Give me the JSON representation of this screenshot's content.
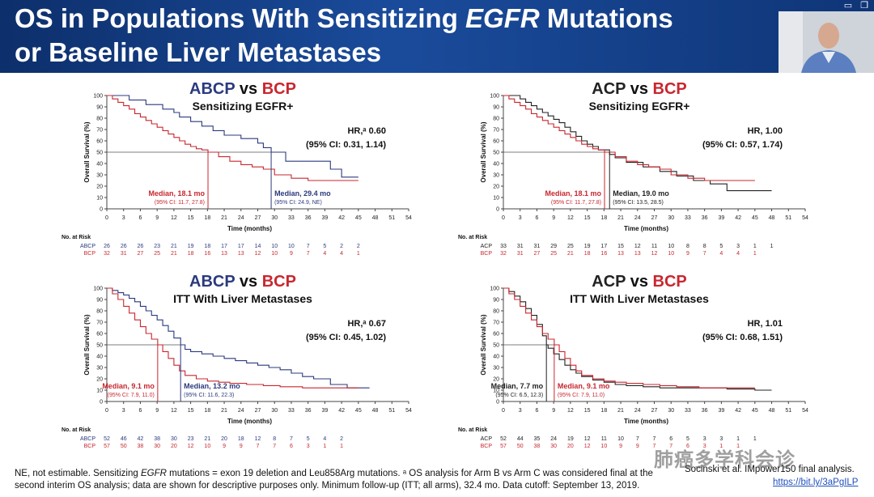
{
  "header": {
    "title_part1": "OS in Populations With Sensitizing ",
    "title_italic": "EGFR",
    "title_part2": " Mutations",
    "title_line2": "or Baseline Liver Metastases"
  },
  "window_icons": [
    "minimize-icon",
    "restore-icon"
  ],
  "colors": {
    "arm_abcp": "#2b3a7e",
    "arm_acp": "#222222",
    "arm_bcp": "#c8272f",
    "banner": "#1a4b9b"
  },
  "chart_data": [
    {
      "type": "line",
      "title_arm1": "ABCP",
      "title_vs": "vs",
      "title_arm2": "BCP",
      "subtitle": "Sensitizing EGFR+",
      "hr": "HR,ᵃ 0.60",
      "ci": "(95% CI: 0.31, 1.14)",
      "xlabel": "Time (months)",
      "ylabel": "Overall Survival (%)",
      "xlim": [
        0,
        54
      ],
      "ylim": [
        0,
        100
      ],
      "xticks": [
        0,
        3,
        6,
        9,
        12,
        15,
        18,
        21,
        24,
        27,
        30,
        33,
        36,
        39,
        42,
        45,
        48,
        51,
        54
      ],
      "yticks": [
        0,
        10,
        20,
        30,
        40,
        50,
        60,
        70,
        80,
        90,
        100
      ],
      "series": [
        {
          "name": "ABCP",
          "color_key": "arm1",
          "x": [
            0,
            3,
            4,
            6,
            7,
            9,
            10,
            12,
            13,
            15,
            17,
            19,
            21,
            24,
            27,
            28,
            29.4,
            32,
            37,
            40,
            42,
            45
          ],
          "y": [
            100,
            100,
            96,
            96,
            92,
            92,
            88,
            85,
            81,
            77,
            73,
            69,
            65,
            62,
            58,
            54,
            50,
            42,
            42,
            35,
            28,
            28
          ]
        },
        {
          "name": "BCP",
          "color_key": "arm2",
          "x": [
            0,
            1,
            2,
            3,
            4,
            5,
            6,
            7,
            8,
            9,
            10,
            11,
            12,
            13,
            14,
            15,
            16,
            17,
            18.1,
            20,
            22,
            24,
            26,
            28,
            30,
            33,
            36,
            40,
            45
          ],
          "y": [
            100,
            97,
            94,
            91,
            88,
            84,
            81,
            78,
            75,
            72,
            69,
            66,
            63,
            60,
            57,
            55,
            53,
            52,
            50,
            46,
            42,
            39,
            37,
            35,
            30,
            27,
            25,
            25,
            25
          ]
        }
      ],
      "medians": [
        {
          "label": "Median, 18.1 mo",
          "ci": "(95% CI: 11.7, 27.8)",
          "x": 18.1,
          "color_key": "arm2"
        },
        {
          "label": "Median, 29.4 mo",
          "ci": "(95% CI: 24.9, NE)",
          "x": 29.4,
          "color_key": "arm1"
        }
      ],
      "at_risk": {
        "title": "No. at Risk",
        "rows": [
          {
            "label": "ABCP",
            "color_key": "arm1",
            "values": [
              "26",
              "26",
              "26",
              "23",
              "21",
              "19",
              "18",
              "17",
              "17",
              "14",
              "10",
              "10",
              "7",
              "5",
              "2",
              "2"
            ]
          },
          {
            "label": "BCP",
            "color_key": "arm2",
            "values": [
              "32",
              "31",
              "27",
              "25",
              "21",
              "18",
              "16",
              "13",
              "13",
              "12",
              "10",
              "9",
              "7",
              "4",
              "4",
              "1"
            ]
          }
        ]
      }
    },
    {
      "type": "line",
      "title_arm1": "ACP",
      "title_vs": "vs",
      "title_arm2": "BCP",
      "subtitle": "Sensitizing EGFR+",
      "hr": "HR, 1.00",
      "ci": "(95% CI: 0.57, 1.74)",
      "xlabel": "Time (months)",
      "ylabel": "Overall Survival (%)",
      "xlim": [
        0,
        54
      ],
      "ylim": [
        0,
        100
      ],
      "xticks": [
        0,
        3,
        6,
        9,
        12,
        15,
        18,
        21,
        24,
        27,
        30,
        33,
        36,
        39,
        42,
        45,
        48,
        51,
        54
      ],
      "yticks": [
        0,
        10,
        20,
        30,
        40,
        50,
        60,
        70,
        80,
        90,
        100
      ],
      "series": [
        {
          "name": "ACP",
          "color_key": "arm1",
          "x": [
            0,
            2,
            3,
            4,
            5,
            6,
            7,
            8,
            9,
            10,
            11,
            12,
            13,
            14,
            15,
            16,
            17,
            19,
            20,
            22,
            25,
            28,
            31,
            34,
            37,
            39,
            40,
            45,
            48
          ],
          "y": [
            100,
            100,
            97,
            94,
            91,
            88,
            85,
            82,
            79,
            76,
            72,
            68,
            64,
            60,
            57,
            55,
            52,
            48,
            45,
            41,
            37,
            33,
            29,
            25,
            22,
            22,
            16,
            16,
            16
          ]
        },
        {
          "name": "BCP",
          "color_key": "arm2",
          "x": [
            0,
            1,
            2,
            3,
            4,
            5,
            6,
            7,
            8,
            9,
            10,
            11,
            12,
            13,
            14,
            15,
            16,
            17,
            18.1,
            20,
            22,
            24,
            26,
            28,
            30,
            33,
            36,
            40,
            45
          ],
          "y": [
            100,
            97,
            94,
            91,
            88,
            84,
            81,
            78,
            75,
            72,
            69,
            66,
            63,
            60,
            57,
            55,
            53,
            52,
            50,
            46,
            42,
            39,
            37,
            35,
            30,
            27,
            25,
            25,
            25
          ]
        }
      ],
      "medians": [
        {
          "label": "Median, 18.1 mo",
          "ci": "(95% CI: 11.7, 27.8)",
          "x": 18.1,
          "color_key": "arm2"
        },
        {
          "label": "Median, 19.0 mo",
          "ci": "(95% CI: 13.5, 28.5)",
          "x": 19.0,
          "color_key": "arm1"
        }
      ],
      "at_risk": {
        "title": "No. at Risk",
        "rows": [
          {
            "label": "ACP",
            "color_key": "arm1",
            "values": [
              "33",
              "31",
              "31",
              "29",
              "25",
              "19",
              "17",
              "15",
              "12",
              "11",
              "10",
              "8",
              "8",
              "5",
              "3",
              "1",
              "1"
            ]
          },
          {
            "label": "BCP",
            "color_key": "arm2",
            "values": [
              "32",
              "31",
              "27",
              "25",
              "21",
              "18",
              "16",
              "13",
              "13",
              "12",
              "10",
              "9",
              "7",
              "4",
              "4",
              "1"
            ]
          }
        ]
      }
    },
    {
      "type": "line",
      "title_arm1": "ABCP",
      "title_vs": "vs",
      "title_arm2": "BCP",
      "subtitle": "ITT With Liver Metastases",
      "hr": "HR,ᵃ 0.67",
      "ci": "(95% CI: 0.45, 1.02)",
      "xlabel": "Time (months)",
      "ylabel": "Overall Survival (%)",
      "xlim": [
        0,
        54
      ],
      "ylim": [
        0,
        100
      ],
      "xticks": [
        0,
        3,
        6,
        9,
        12,
        15,
        18,
        21,
        24,
        27,
        30,
        33,
        36,
        39,
        42,
        45,
        48,
        51,
        54
      ],
      "yticks": [
        0,
        10,
        20,
        30,
        40,
        50,
        60,
        70,
        80,
        90,
        100
      ],
      "series": [
        {
          "name": "ABCP",
          "color_key": "arm1",
          "x": [
            0,
            1,
            2,
            3,
            4,
            5,
            6,
            7,
            8,
            9,
            10,
            11,
            12,
            13.2,
            14,
            15,
            17,
            19,
            21,
            23,
            25,
            27,
            29,
            31,
            33,
            35,
            37,
            40,
            43,
            47
          ],
          "y": [
            100,
            98,
            96,
            94,
            91,
            88,
            84,
            80,
            76,
            72,
            67,
            62,
            56,
            50,
            46,
            44,
            42,
            40,
            38,
            36,
            34,
            32,
            30,
            28,
            25,
            22,
            20,
            15,
            12,
            12
          ]
        },
        {
          "name": "BCP",
          "color_key": "arm2",
          "x": [
            0,
            1,
            2,
            3,
            4,
            5,
            6,
            7,
            8,
            9.1,
            10,
            11,
            12,
            13,
            14,
            16,
            18,
            20,
            22,
            25,
            28,
            31,
            35,
            40,
            45
          ],
          "y": [
            100,
            95,
            90,
            84,
            78,
            72,
            66,
            60,
            55,
            50,
            44,
            38,
            32,
            27,
            23,
            20,
            18,
            17,
            16,
            15,
            14,
            13,
            12,
            12,
            12
          ]
        }
      ],
      "medians": [
        {
          "label": "Median, 9.1 mo",
          "ci": "(95% CI: 7.9, 11.0)",
          "x": 9.1,
          "color_key": "arm2"
        },
        {
          "label": "Median, 13.2 mo",
          "ci": "(95% CI: 11.6, 22.3)",
          "x": 13.2,
          "color_key": "arm1"
        }
      ],
      "at_risk": {
        "title": "No. at Risk",
        "rows": [
          {
            "label": "ABCP",
            "color_key": "arm1",
            "values": [
              "52",
              "46",
              "42",
              "38",
              "30",
              "23",
              "21",
              "20",
              "18",
              "12",
              "8",
              "7",
              "5",
              "4",
              "2"
            ]
          },
          {
            "label": "BCP",
            "color_key": "arm2",
            "values": [
              "57",
              "50",
              "38",
              "30",
              "20",
              "12",
              "10",
              "9",
              "9",
              "7",
              "7",
              "6",
              "3",
              "1",
              "1"
            ]
          }
        ]
      }
    },
    {
      "type": "line",
      "title_arm1": "ACP",
      "title_vs": "vs",
      "title_arm2": "BCP",
      "subtitle": "ITT With Liver Metastases",
      "hr": "HR, 1.01",
      "ci": "(95% CI: 0.68, 1.51)",
      "xlabel": "Time (months)",
      "ylabel": "Overall Survival (%)",
      "xlim": [
        0,
        54
      ],
      "ylim": [
        0,
        100
      ],
      "xticks": [
        0,
        3,
        6,
        9,
        12,
        15,
        18,
        21,
        24,
        27,
        30,
        33,
        36,
        39,
        42,
        45,
        48,
        51,
        54
      ],
      "yticks": [
        0,
        10,
        20,
        30,
        40,
        50,
        60,
        70,
        80,
        90,
        100
      ],
      "series": [
        {
          "name": "ACP",
          "color_key": "arm1",
          "x": [
            0,
            1,
            2,
            3,
            4,
            5,
            6,
            7,
            7.7,
            8,
            9,
            10,
            11,
            12,
            13,
            14,
            16,
            18,
            20,
            22,
            25,
            28,
            31,
            35,
            40,
            45,
            48
          ],
          "y": [
            100,
            97,
            93,
            88,
            82,
            76,
            68,
            58,
            50,
            47,
            42,
            37,
            32,
            28,
            25,
            22,
            19,
            17,
            15,
            14,
            13,
            12,
            12,
            12,
            11,
            10,
            10
          ]
        },
        {
          "name": "BCP",
          "color_key": "arm2",
          "x": [
            0,
            1,
            2,
            3,
            4,
            5,
            6,
            7,
            8,
            9.1,
            10,
            11,
            12,
            13,
            14,
            16,
            18,
            20,
            22,
            25,
            28,
            31,
            35,
            40,
            45
          ],
          "y": [
            100,
            95,
            90,
            84,
            78,
            72,
            66,
            60,
            55,
            50,
            44,
            38,
            32,
            27,
            23,
            20,
            18,
            17,
            16,
            15,
            14,
            13,
            12,
            12,
            12
          ]
        }
      ],
      "medians": [
        {
          "label": "Median, 7.7 mo",
          "ci": "(95% CI: 6.5, 12.3)",
          "x": 7.7,
          "color_key": "arm1"
        },
        {
          "label": "Median, 9.1 mo",
          "ci": "(95% CI: 7.9, 11.0)",
          "x": 9.1,
          "color_key": "arm2"
        }
      ],
      "at_risk": {
        "title": "No. at Risk",
        "rows": [
          {
            "label": "ACP",
            "color_key": "arm1",
            "values": [
              "52",
              "44",
              "35",
              "24",
              "19",
              "12",
              "11",
              "10",
              "7",
              "7",
              "6",
              "5",
              "3",
              "3",
              "1",
              "1"
            ]
          },
          {
            "label": "BCP",
            "color_key": "arm2",
            "values": [
              "57",
              "50",
              "38",
              "30",
              "20",
              "12",
              "10",
              "9",
              "9",
              "7",
              "7",
              "6",
              "3",
              "1",
              "1"
            ]
          }
        ]
      }
    }
  ],
  "footer": {
    "text_part1": "NE, not estimable. Sensitizing ",
    "text_italic": "EGFR",
    "text_part2": " mutations = exon 19 deletion and Leu858Arg mutations. ᵃ OS analysis for Arm B vs Arm C was considered final at the second interim OS analysis; data are shown for descriptive purposes only. Minimum follow-up (ITT; all arms), 32.4 mo. Data cutoff: September 13, 2019.",
    "citation": "Socinski et al. IMpower150 final analysis.",
    "link": "https://bit.ly/3aPgILP"
  },
  "watermark": "肺癌多学科会诊"
}
